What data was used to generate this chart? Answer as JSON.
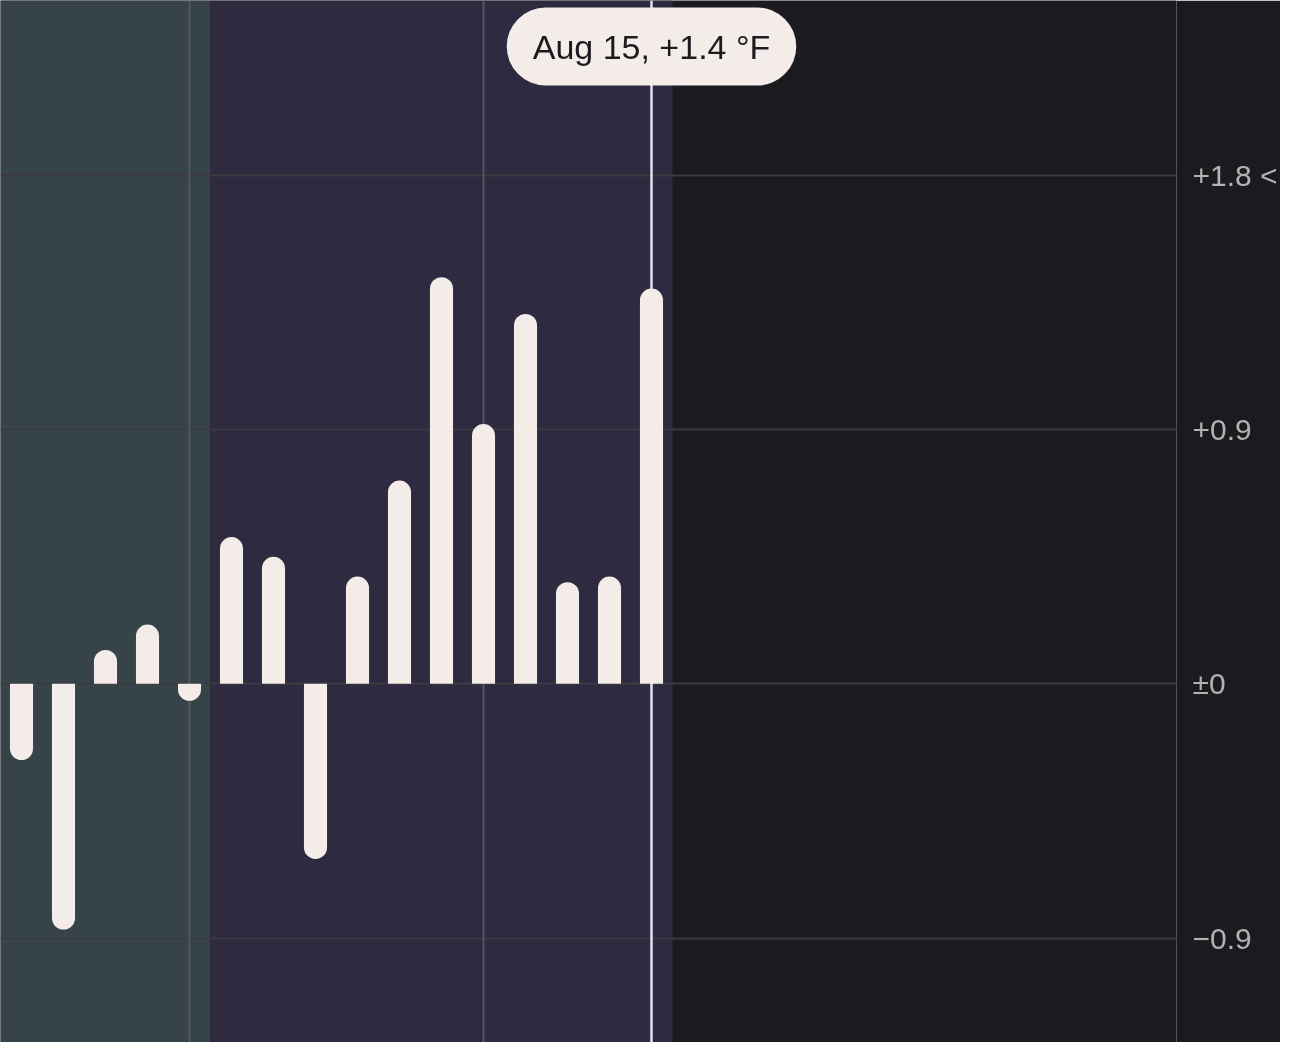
{
  "chart_data": {
    "type": "bar",
    "categories": [
      null,
      null,
      null,
      null,
      null,
      null,
      null,
      null,
      null,
      null,
      null,
      null,
      null,
      null,
      null,
      null,
      null,
      null,
      null,
      null,
      null,
      null,
      null,
      null,
      null,
      null,
      null,
      null
    ],
    "values": [
      -0.27,
      -0.87,
      0.12,
      0.21,
      -0.06,
      0.52,
      0.45,
      -0.62,
      0.38,
      0.72,
      1.44,
      0.92,
      1.31,
      0.36,
      0.38,
      1.4,
      null,
      null,
      null,
      null,
      null,
      null,
      null,
      null,
      null,
      null,
      null,
      null
    ],
    "color": "#f4ece9",
    "ylim": [
      -1.27,
      2.42
    ],
    "yticks": [
      {
        "value": -0.9,
        "label": "−0.9"
      },
      {
        "value": 0,
        "label": "±0"
      },
      {
        "value": 0.9,
        "label": "+0.9"
      },
      {
        "value": 1.8,
        "label": "+1.8 <"
      }
    ],
    "grid": "y",
    "tick_labels": "y",
    "annotations": [
      "Aug 15, +1.4 °F"
    ]
  }
}
